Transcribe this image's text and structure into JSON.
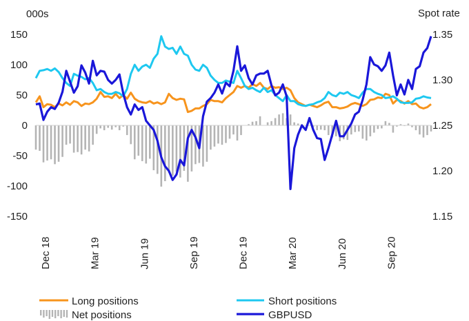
{
  "chart_data": {
    "type": "line",
    "left_axis_label": "000s",
    "right_axis_label": "Spot rate",
    "left_ylim": [
      -150,
      150
    ],
    "right_ylim": [
      1.15,
      1.35
    ],
    "left_ticks": [
      "150",
      "100",
      "50",
      "0",
      "-50",
      "-100",
      "-150"
    ],
    "right_ticks": [
      "1.35",
      "1.30",
      "1.25",
      "1.20",
      "1.15"
    ],
    "x_tick_labels": [
      "Dec 18",
      "Mar 19",
      "Jun 19",
      "Sep 19",
      "Dec 19",
      "Mar 20",
      "Jun 20",
      "Sep 20"
    ],
    "x_tick_index": [
      0,
      13,
      26,
      39,
      52,
      65,
      78,
      91
    ],
    "grid": false,
    "legend_position": "bottom",
    "x": [
      "2018-12-04",
      "2018-12-11",
      "2018-12-18",
      "2018-12-25",
      "2019-01-01",
      "2019-01-08",
      "2019-01-15",
      "2019-01-22",
      "2019-01-29",
      "2019-02-05",
      "2019-02-12",
      "2019-02-19",
      "2019-02-26",
      "2019-03-05",
      "2019-03-12",
      "2019-03-19",
      "2019-03-26",
      "2019-04-02",
      "2019-04-09",
      "2019-04-16",
      "2019-04-23",
      "2019-04-30",
      "2019-05-07",
      "2019-05-14",
      "2019-05-21",
      "2019-05-28",
      "2019-06-04",
      "2019-06-11",
      "2019-06-18",
      "2019-06-25",
      "2019-07-02",
      "2019-07-09",
      "2019-07-16",
      "2019-07-23",
      "2019-07-30",
      "2019-08-06",
      "2019-08-13",
      "2019-08-20",
      "2019-08-27",
      "2019-09-03",
      "2019-09-10",
      "2019-09-17",
      "2019-09-24",
      "2019-10-01",
      "2019-10-08",
      "2019-10-15",
      "2019-10-22",
      "2019-10-29",
      "2019-11-05",
      "2019-11-12",
      "2019-11-19",
      "2019-11-26",
      "2019-12-03",
      "2019-12-10",
      "2019-12-17",
      "2019-12-24",
      "2019-12-31",
      "2020-01-07",
      "2020-01-14",
      "2020-01-21",
      "2020-01-28",
      "2020-02-04",
      "2020-02-11",
      "2020-02-18",
      "2020-02-25",
      "2020-03-03",
      "2020-03-10",
      "2020-03-17",
      "2020-03-24",
      "2020-03-31",
      "2020-04-07",
      "2020-04-14",
      "2020-04-21",
      "2020-04-28",
      "2020-05-05",
      "2020-05-12",
      "2020-05-19",
      "2020-05-26",
      "2020-06-02",
      "2020-06-09",
      "2020-06-16",
      "2020-06-23",
      "2020-06-30",
      "2020-07-07",
      "2020-07-14",
      "2020-07-21",
      "2020-07-28",
      "2020-08-04",
      "2020-08-11",
      "2020-08-18",
      "2020-08-25",
      "2020-09-01",
      "2020-09-08",
      "2020-09-15",
      "2020-09-22",
      "2020-09-29",
      "2020-10-06",
      "2020-10-13",
      "2020-10-20",
      "2020-10-27",
      "2020-11-03",
      "2020-11-10",
      "2020-11-17",
      "2020-11-24",
      "2020-12-01"
    ],
    "series": [
      {
        "name": "Long positions",
        "axis": "left",
        "color": "#f7941d",
        "values": [
          38,
          48,
          30,
          35,
          34,
          30,
          36,
          33,
          38,
          34,
          40,
          38,
          32,
          36,
          35,
          38,
          44,
          55,
          47,
          48,
          45,
          52,
          45,
          50,
          44,
          54,
          44,
          40,
          38,
          37,
          40,
          36,
          38,
          35,
          38,
          52,
          45,
          42,
          44,
          43,
          22,
          24,
          28,
          28,
          32,
          35,
          42,
          40,
          40,
          38,
          45,
          50,
          55,
          65,
          62,
          65,
          62,
          68,
          65,
          70,
          62,
          60,
          65,
          62,
          63,
          60,
          62,
          58,
          45,
          38,
          35,
          32,
          34,
          32,
          30,
          33,
          37,
          39,
          30,
          30,
          28,
          29,
          31,
          35,
          37,
          35,
          32,
          35,
          42,
          43,
          46,
          45,
          52,
          50,
          36,
          42,
          40,
          36,
          40,
          35,
          36,
          30,
          28,
          30,
          35
        ]
      },
      {
        "name": "Short positions",
        "axis": "left",
        "color": "#1ec8f0",
        "values": [
          78,
          90,
          91,
          93,
          90,
          94,
          88,
          78,
          70,
          65,
          85,
          82,
          80,
          76,
          78,
          70,
          58,
          60,
          55,
          52,
          52,
          55,
          53,
          48,
          60,
          85,
          100,
          90,
          97,
          100,
          95,
          110,
          118,
          147,
          130,
          126,
          128,
          118,
          130,
          118,
          115,
          100,
          92,
          90,
          100,
          95,
          82,
          75,
          70,
          70,
          74,
          72,
          70,
          90,
          78,
          65,
          60,
          62,
          58,
          55,
          62,
          55,
          58,
          50,
          45,
          40,
          50,
          40,
          40,
          35,
          33,
          32,
          34,
          35,
          38,
          40,
          45,
          55,
          50,
          48,
          54,
          52,
          55,
          50,
          48,
          45,
          54,
          60,
          60,
          55,
          52,
          50,
          45,
          46,
          48,
          44,
          38,
          37,
          37,
          38,
          44,
          45,
          48,
          46,
          45
        ]
      },
      {
        "name": "Net positions",
        "axis": "left",
        "color": "#b4b4b4",
        "values": [
          -40,
          -42,
          -61,
          -58,
          -56,
          -64,
          -60,
          -52,
          -32,
          -30,
          -45,
          -44,
          -48,
          -40,
          -43,
          -32,
          -14,
          -5,
          -8,
          -4,
          -7,
          -3,
          -8,
          -2,
          -16,
          -31,
          -56,
          -50,
          -59,
          -63,
          -55,
          -74,
          -80,
          -101,
          -92,
          -78,
          -83,
          -76,
          -86,
          -75,
          -93,
          -76,
          -64,
          -62,
          -68,
          -60,
          -40,
          -35,
          -30,
          -32,
          -29,
          -22,
          -15,
          -25,
          -16,
          0,
          2,
          6,
          7,
          15,
          0,
          5,
          7,
          12,
          18,
          20,
          12,
          18,
          5,
          3,
          2,
          0,
          0,
          -3,
          -8,
          -7,
          -8,
          -16,
          -20,
          -18,
          -26,
          -23,
          -24,
          -15,
          -11,
          -10,
          -22,
          -25,
          -18,
          -12,
          -6,
          -5,
          7,
          4,
          -12,
          -2,
          2,
          -1,
          3,
          -3,
          -8,
          -15,
          -20,
          -16,
          -10
        ]
      },
      {
        "name": "GBPUSD",
        "axis": "right",
        "color": "#1a17d9",
        "values": [
          1.273,
          1.274,
          1.256,
          1.265,
          1.27,
          1.268,
          1.275,
          1.287,
          1.31,
          1.298,
          1.286,
          1.293,
          1.316,
          1.308,
          1.296,
          1.321,
          1.305,
          1.31,
          1.309,
          1.3,
          1.296,
          1.3,
          1.306,
          1.285,
          1.27,
          1.262,
          1.273,
          1.267,
          1.27,
          1.255,
          1.25,
          1.245,
          1.233,
          1.215,
          1.205,
          1.2,
          1.19,
          1.196,
          1.212,
          1.206,
          1.236,
          1.245,
          1.237,
          1.225,
          1.26,
          1.276,
          1.28,
          1.286,
          1.295,
          1.285,
          1.297,
          1.293,
          1.31,
          1.337,
          1.31,
          1.316,
          1.302,
          1.295,
          1.305,
          1.307,
          1.307,
          1.31,
          1.294,
          1.283,
          1.286,
          1.295,
          1.282,
          1.18,
          1.225,
          1.24,
          1.25,
          1.245,
          1.258,
          1.245,
          1.236,
          1.235,
          1.212,
          1.225,
          1.24,
          1.255,
          1.238,
          1.238,
          1.245,
          1.252,
          1.262,
          1.265,
          1.278,
          1.295,
          1.325,
          1.317,
          1.315,
          1.31,
          1.316,
          1.33,
          1.305,
          1.283,
          1.295,
          1.284,
          1.3,
          1.29,
          1.312,
          1.315,
          1.33,
          1.335,
          1.348
        ]
      }
    ]
  },
  "legend": {
    "long": "Long positions",
    "short": "Short positions",
    "net": "Net positions",
    "gbpusd": "GBPUSD"
  }
}
